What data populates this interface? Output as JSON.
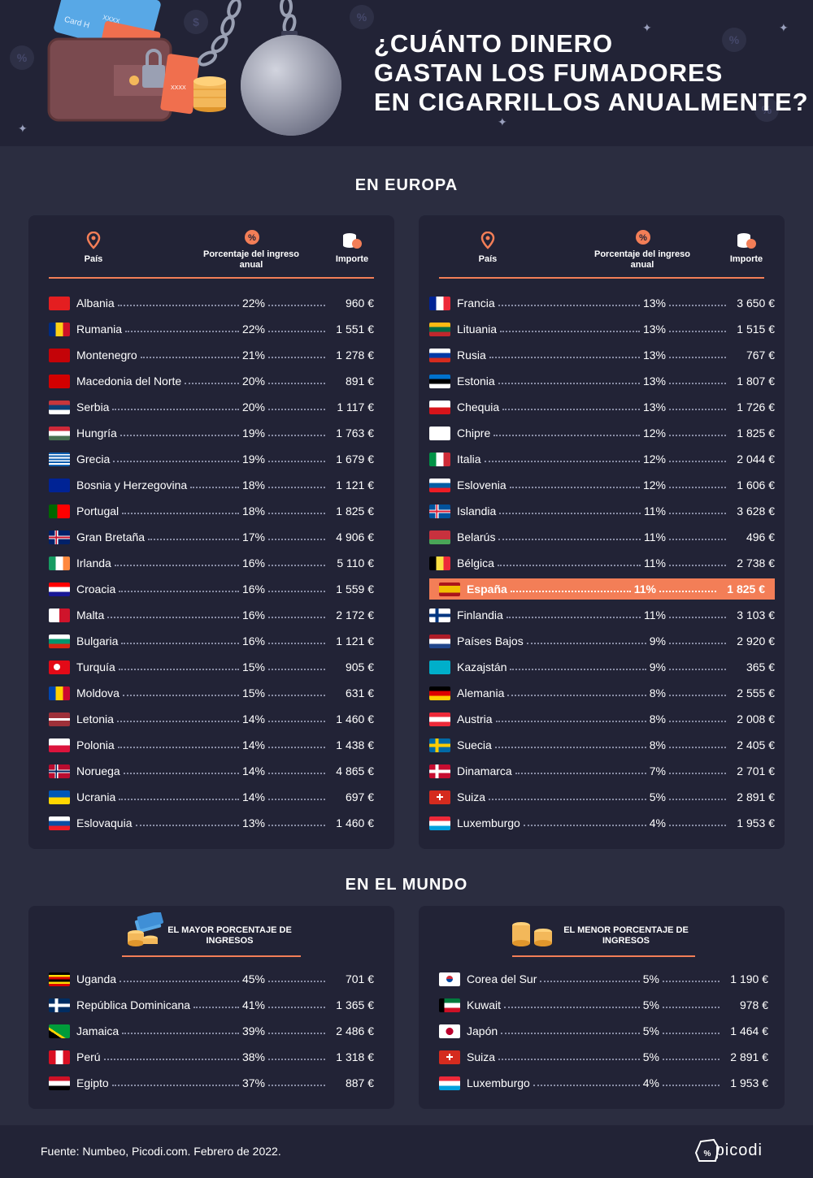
{
  "header": {
    "title_lines": [
      "¿CUÁNTO DINERO",
      "GASTAN LOS FUMADORES",
      "EN CIGARRILLOS ANUALMENTE?"
    ],
    "card_text": "Card H",
    "card_mask": "XXXX"
  },
  "europe": {
    "title": "EN EUROPA",
    "columns": {
      "country": "País",
      "percent": "Porcentaje del ingreso anual",
      "amount": "Importe"
    },
    "left": [
      {
        "country": "Albania",
        "percent": "22%",
        "amount": "960 €",
        "flag": "albania"
      },
      {
        "country": "Rumania",
        "percent": "22%",
        "amount": "1 551 €",
        "flag": "romania"
      },
      {
        "country": "Montenegro",
        "percent": "21%",
        "amount": "1 278 €",
        "flag": "montenegro"
      },
      {
        "country": "Macedonia del Norte",
        "percent": "20%",
        "amount": "891 €",
        "flag": "macedonia"
      },
      {
        "country": "Serbia",
        "percent": "20%",
        "amount": "1 117 €",
        "flag": "serbia"
      },
      {
        "country": "Hungría",
        "percent": "19%",
        "amount": "1 763 €",
        "flag": "hungary"
      },
      {
        "country": "Grecia",
        "percent": "19%",
        "amount": "1 679 €",
        "flag": "greece"
      },
      {
        "country": "Bosnia y Herzegovina",
        "percent": "18%",
        "amount": "1 121 €",
        "flag": "bosnia"
      },
      {
        "country": "Portugal",
        "percent": "18%",
        "amount": "1 825 €",
        "flag": "portugal"
      },
      {
        "country": "Gran Bretaña",
        "percent": "17%",
        "amount": "4 906 €",
        "flag": "uk"
      },
      {
        "country": "Irlanda",
        "percent": "16%",
        "amount": "5 110 €",
        "flag": "ireland"
      },
      {
        "country": "Croacia",
        "percent": "16%",
        "amount": "1 559 €",
        "flag": "croatia"
      },
      {
        "country": "Malta",
        "percent": "16%",
        "amount": "2 172 €",
        "flag": "malta"
      },
      {
        "country": "Bulgaria",
        "percent": "16%",
        "amount": "1 121 €",
        "flag": "bulgaria"
      },
      {
        "country": "Turquía",
        "percent": "15%",
        "amount": "905 €",
        "flag": "turkey"
      },
      {
        "country": "Moldova",
        "percent": "15%",
        "amount": "631 €",
        "flag": "moldova"
      },
      {
        "country": "Letonia",
        "percent": "14%",
        "amount": "1 460 €",
        "flag": "latvia"
      },
      {
        "country": "Polonia",
        "percent": "14%",
        "amount": "1 438 €",
        "flag": "poland"
      },
      {
        "country": "Noruega",
        "percent": "14%",
        "amount": "4 865 €",
        "flag": "norway"
      },
      {
        "country": "Ucrania",
        "percent": "14%",
        "amount": "697 €",
        "flag": "ukraine"
      },
      {
        "country": "Eslovaquia",
        "percent": "13%",
        "amount": "1 460 €",
        "flag": "slovakia"
      }
    ],
    "right": [
      {
        "country": "Francia",
        "percent": "13%",
        "amount": "3 650 €",
        "flag": "france"
      },
      {
        "country": "Lituania",
        "percent": "13%",
        "amount": "1 515 €",
        "flag": "lithuania"
      },
      {
        "country": "Rusia",
        "percent": "13%",
        "amount": "767 €",
        "flag": "russia"
      },
      {
        "country": "Estonia",
        "percent": "13%",
        "amount": "1 807 €",
        "flag": "estonia"
      },
      {
        "country": "Chequia",
        "percent": "13%",
        "amount": "1 726 €",
        "flag": "czech"
      },
      {
        "country": "Chipre",
        "percent": "12%",
        "amount": "1 825 €",
        "flag": "cyprus"
      },
      {
        "country": "Italia",
        "percent": "12%",
        "amount": "2 044 €",
        "flag": "italy"
      },
      {
        "country": "Eslovenia",
        "percent": "12%",
        "amount": "1 606 €",
        "flag": "slovenia"
      },
      {
        "country": "Islandia",
        "percent": "11%",
        "amount": "3 628 €",
        "flag": "iceland"
      },
      {
        "country": "Belarús",
        "percent": "11%",
        "amount": "496 €",
        "flag": "belarus"
      },
      {
        "country": "Bélgica",
        "percent": "11%",
        "amount": "2 738 €",
        "flag": "belgium"
      },
      {
        "country": "España",
        "percent": "11%",
        "amount": "1 825 €",
        "flag": "spain",
        "highlight": true
      },
      {
        "country": "Finlandia",
        "percent": "11%",
        "amount": "3 103 €",
        "flag": "finland"
      },
      {
        "country": "Países Bajos",
        "percent": "9%",
        "amount": "2 920 €",
        "flag": "netherlands"
      },
      {
        "country": "Kazajstán",
        "percent": "9%",
        "amount": "365 €",
        "flag": "kazakhstan"
      },
      {
        "country": "Alemania",
        "percent": "8%",
        "amount": "2 555 €",
        "flag": "germany"
      },
      {
        "country": "Austria",
        "percent": "8%",
        "amount": "2 008 €",
        "flag": "austria"
      },
      {
        "country": "Suecia",
        "percent": "8%",
        "amount": "2 405 €",
        "flag": "sweden"
      },
      {
        "country": "Dinamarca",
        "percent": "7%",
        "amount": "2 701 €",
        "flag": "denmark"
      },
      {
        "country": "Suiza",
        "percent": "5%",
        "amount": "2 891 €",
        "flag": "switzerland"
      },
      {
        "country": "Luxemburgo",
        "percent": "4%",
        "amount": "1 953 €",
        "flag": "luxembourg"
      }
    ]
  },
  "world": {
    "title": "EN EL MUNDO",
    "highest_title": "EL MAYOR PORCENTAJE DE INGRESOS",
    "lowest_title": "EL MENOR PORCENTAJE DE INGRESOS",
    "highest": [
      {
        "country": "Uganda",
        "percent": "45%",
        "amount": "701 €",
        "flag": "uganda"
      },
      {
        "country": "República Dominicana",
        "percent": "41%",
        "amount": "1 365 €",
        "flag": "dominican"
      },
      {
        "country": "Jamaica",
        "percent": "39%",
        "amount": "2 486 €",
        "flag": "jamaica"
      },
      {
        "country": "Perú",
        "percent": "38%",
        "amount": "1 318 €",
        "flag": "peru"
      },
      {
        "country": "Egipto",
        "percent": "37%",
        "amount": "887 €",
        "flag": "egypt"
      }
    ],
    "lowest": [
      {
        "country": "Corea del Sur",
        "percent": "5%",
        "amount": "1 190 €",
        "flag": "korea"
      },
      {
        "country": "Kuwait",
        "percent": "5%",
        "amount": "978 €",
        "flag": "kuwait"
      },
      {
        "country": "Japón",
        "percent": "5%",
        "amount": "1 464 €",
        "flag": "japan"
      },
      {
        "country": "Suiza",
        "percent": "5%",
        "amount": "2 891 €",
        "flag": "switzerland"
      },
      {
        "country": "Luxemburgo",
        "percent": "4%",
        "amount": "1 953 €",
        "flag": "luxembourg"
      }
    ]
  },
  "footer": {
    "source": "Fuente: Numbeo, Picodi.com. Febrero de 2022.",
    "logo": "picodi"
  },
  "colors": {
    "background": "#2b2d40",
    "panel": "#222336",
    "accent": "#f37e57"
  },
  "icons": {
    "country_column": "location-pin-icon",
    "percent_column": "percent-badge-icon",
    "amount_column": "coins-icon"
  }
}
